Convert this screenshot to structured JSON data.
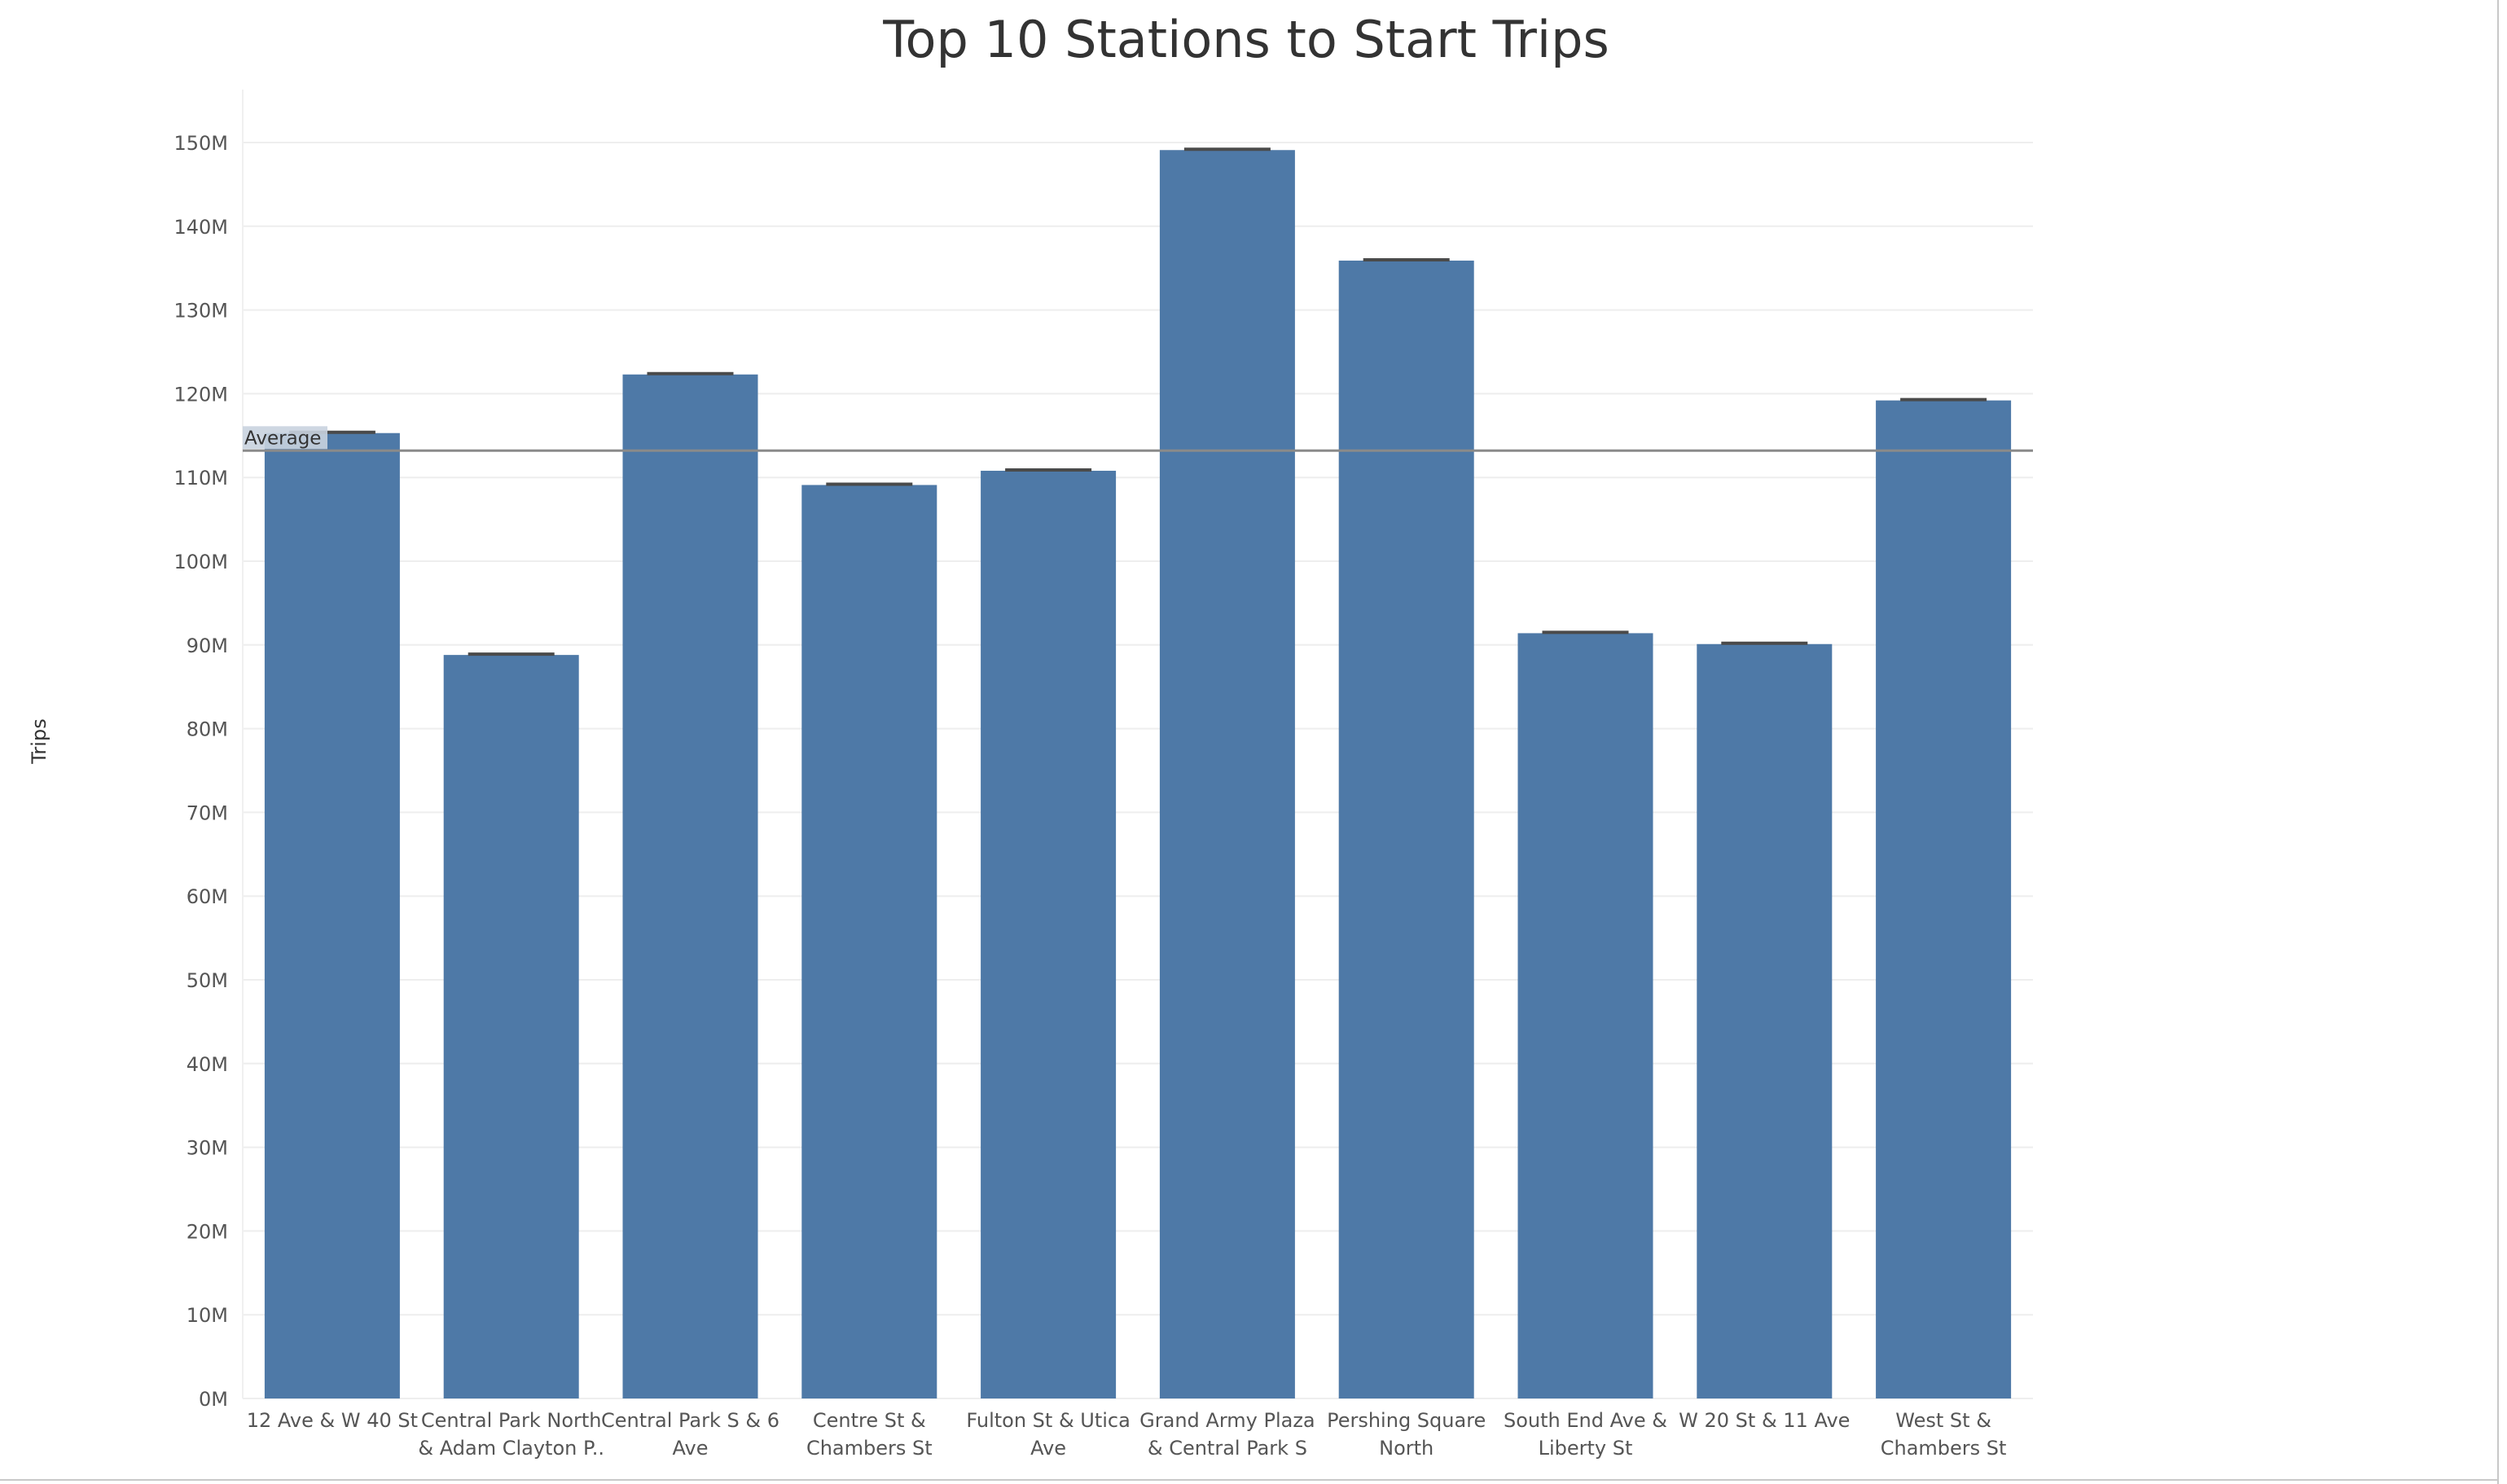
{
  "chart_data": {
    "type": "bar",
    "title": "Top 10 Stations to Start Trips",
    "ylabel": "Trips",
    "xlabel": "",
    "ylim": [
      0,
      150000000
    ],
    "yticks": [
      0,
      10000000,
      20000000,
      30000000,
      40000000,
      50000000,
      60000000,
      70000000,
      80000000,
      90000000,
      100000000,
      110000000,
      120000000,
      130000000,
      140000000,
      150000000
    ],
    "ytick_labels": [
      "0M",
      "10M",
      "20M",
      "30M",
      "40M",
      "50M",
      "60M",
      "70M",
      "80M",
      "90M",
      "100M",
      "110M",
      "120M",
      "130M",
      "140M",
      "150M"
    ],
    "grid": true,
    "bar_color": "#4e79a7",
    "reference_line": {
      "label": "Average",
      "value": 113200000,
      "color": "#8a8a8a"
    },
    "categories": [
      [
        "12 Ave & W 40 St"
      ],
      [
        "Central Park North",
        "& Adam Clayton P.."
      ],
      [
        "Central Park S & 6",
        "Ave"
      ],
      [
        "Centre St &",
        "Chambers St"
      ],
      [
        "Fulton St & Utica",
        "Ave"
      ],
      [
        "Grand Army Plaza",
        "& Central Park S"
      ],
      [
        "Pershing Square",
        "North"
      ],
      [
        "South End Ave &",
        "Liberty St"
      ],
      [
        "W 20 St & 11 Ave"
      ],
      [
        "West St &",
        "Chambers St"
      ]
    ],
    "values": [
      115300000,
      88800000,
      122300000,
      109100000,
      110800000,
      149100000,
      135900000,
      91400000,
      90100000,
      119200000
    ]
  }
}
